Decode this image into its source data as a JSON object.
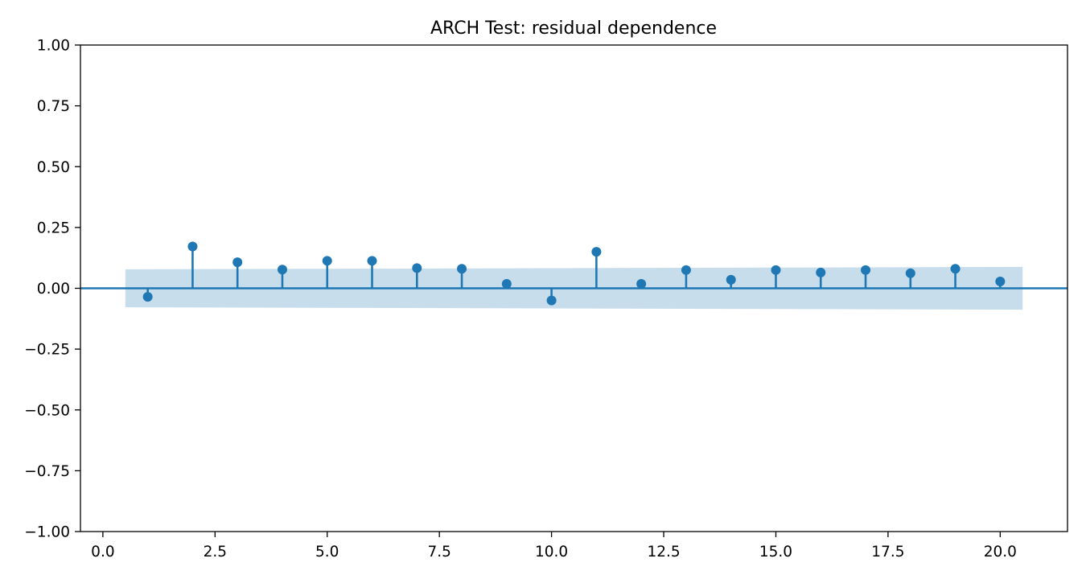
{
  "chart_data": {
    "type": "scatter",
    "style": "stem",
    "title": "ARCH Test: residual dependence",
    "xlabel": "",
    "ylabel": "",
    "xlim": [
      -0.5,
      21.5
    ],
    "ylim": [
      -1.0,
      1.0
    ],
    "x_ticks": [
      0.0,
      2.5,
      5.0,
      7.5,
      10.0,
      12.5,
      15.0,
      17.5,
      20.0
    ],
    "x_tick_labels": [
      "0.0",
      "2.5",
      "5.0",
      "7.5",
      "10.0",
      "12.5",
      "15.0",
      "17.5",
      "20.0"
    ],
    "y_ticks": [
      1.0,
      0.75,
      0.5,
      0.25,
      0.0,
      -0.25,
      -0.5,
      -0.75,
      -1.0
    ],
    "y_tick_labels": [
      "1.00",
      "0.75",
      "0.50",
      "0.25",
      "0.00",
      "−0.25",
      "−0.50",
      "−0.75",
      "−1.00"
    ],
    "grid": false,
    "series": [
      {
        "x": [
          1,
          2,
          3,
          4,
          5,
          6,
          7,
          8,
          9,
          10,
          11,
          12,
          13,
          14,
          15,
          16,
          17,
          18,
          19,
          20
        ],
        "values": [
          -0.035,
          0.172,
          0.107,
          0.077,
          0.113,
          0.113,
          0.083,
          0.08,
          0.018,
          -0.05,
          0.15,
          0.018,
          0.075,
          0.035,
          0.075,
          0.065,
          0.075,
          0.062,
          0.08,
          0.028
        ],
        "color": "#1f77b4"
      }
    ],
    "confidence_band": {
      "x": [
        0.5,
        20.5
      ],
      "upper": [
        0.078,
        0.088
      ],
      "lower": [
        -0.078,
        -0.088
      ],
      "color": "#1f77b4",
      "alpha": 0.25
    },
    "zero_line_color": "#1f77b4"
  }
}
